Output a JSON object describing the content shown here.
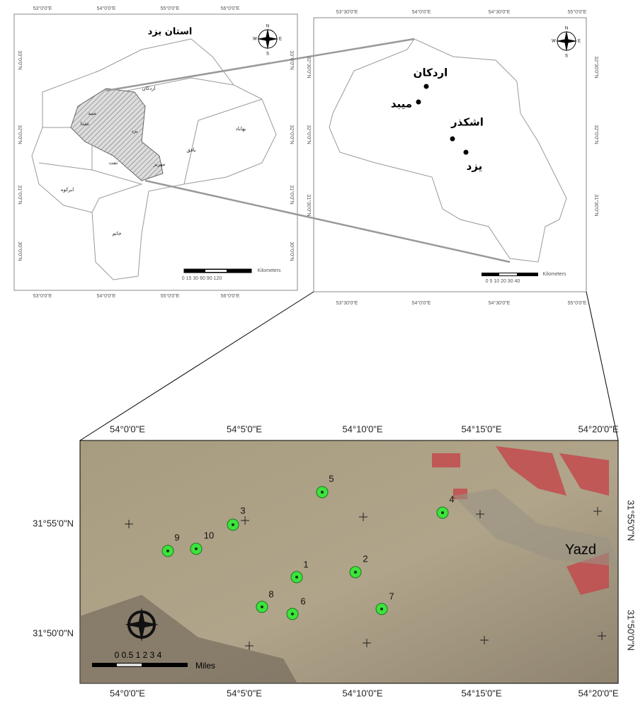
{
  "overview_map": {
    "title": "استان یزد",
    "top_labels": [
      "53°0'0\"E",
      "54°0'0\"E",
      "55°0'0\"E",
      "56°0'0\"E"
    ],
    "bottom_labels": [
      "53°0'0\"E",
      "54°0'0\"E",
      "55°0'0\"E",
      "56°0'0\"E"
    ],
    "left_labels": [
      "33°0'0\"N",
      "32°0'0\"N",
      "31°0'0\"N",
      "30°0'0\"N"
    ],
    "right_labels": [
      "33°0'0\"N",
      "32°0'0\"N",
      "31°0'0\"N",
      "30°0'0\"N"
    ],
    "regions": [
      "اردکان",
      "میبد",
      "عقدا",
      "یزد",
      "بافق",
      "بهاباد",
      "تفت",
      "ابرکوه",
      "مهریز",
      "خاتم"
    ],
    "scale_ticks": "0 15 30   60   90   120",
    "scale_unit": "Kilometers",
    "compass": [
      "N",
      "S",
      "E",
      "W"
    ]
  },
  "inset_map": {
    "top_labels": [
      "53°30'0\"E",
      "54°0'0\"E",
      "54°30'0\"E",
      "55°0'0\"E"
    ],
    "bottom_labels": [
      "53°30'0\"E",
      "54°0'0\"E",
      "54°30'0\"E",
      "55°0'0\"E"
    ],
    "left_labels": [
      "32°30'0\"N",
      "32°0'0\"N",
      "31°30'0\"N"
    ],
    "right_labels": [
      "32°30'0\"N",
      "32°0'0\"N",
      "31°30'0\"N"
    ],
    "cities": [
      "اردکان",
      "میبد",
      "اشکذر",
      "یزد"
    ],
    "scale_ticks": "0  5 10   20   30   40",
    "scale_unit": "Kilometers",
    "compass": [
      "N",
      "S",
      "E",
      "W"
    ]
  },
  "detail_map": {
    "top_labels": [
      "54°0'0\"E",
      "54°5'0\"E",
      "54°10'0\"E",
      "54°15'0\"E",
      "54°20'0\"E"
    ],
    "bottom_labels": [
      "54°0'0\"E",
      "54°5'0\"E",
      "54°10'0\"E",
      "54°15'0\"E",
      "54°20'0\"E"
    ],
    "left_labels": [
      "31°55'0\"N",
      "31°50'0\"N"
    ],
    "right_labels": [
      "31°55'0\"N",
      "31°50'0\"N"
    ],
    "city": "Yazd",
    "points": [
      "1",
      "2",
      "3",
      "4",
      "5",
      "6",
      "7",
      "8",
      "9",
      "10"
    ],
    "scale_ticks": "0 0.5  1      2      3      4",
    "scale_unit": "Miles"
  }
}
